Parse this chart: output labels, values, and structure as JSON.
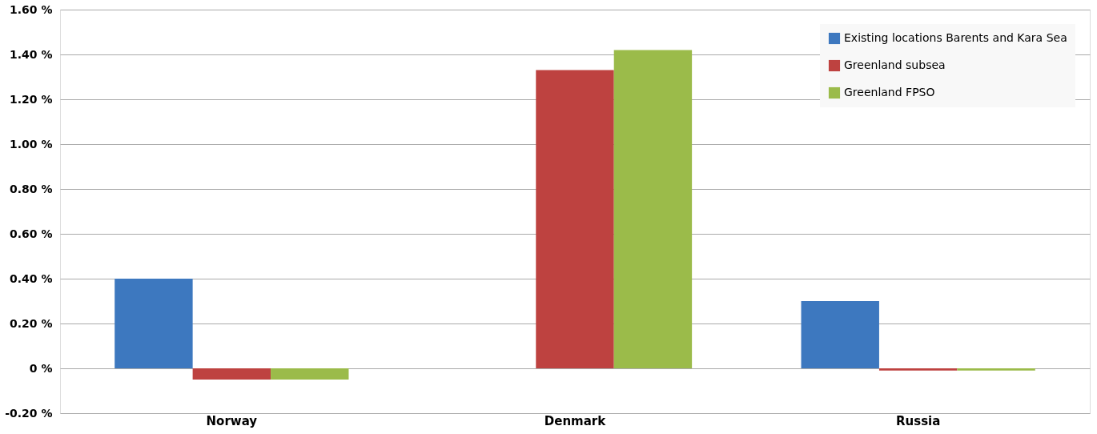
{
  "chart_data": {
    "type": "bar",
    "categories": [
      "Norway",
      "Denmark",
      "Russia"
    ],
    "series": [
      {
        "name": "Existing locations Barents and Kara Sea",
        "color": "#3d78bf",
        "values": [
          0.4,
          0,
          0.3
        ]
      },
      {
        "name": "Greenland subsea",
        "color": "#be4240",
        "values": [
          -0.05,
          1.33,
          -0.01
        ]
      },
      {
        "name": "Greenland FPSO",
        "color": "#9bbb4a",
        "values": [
          -0.05,
          1.42,
          -0.01
        ]
      }
    ],
    "ylim": [
      -0.2,
      1.6
    ],
    "yticks": [
      {
        "value": -0.2,
        "label": "-0.20 %"
      },
      {
        "value": 0,
        "label": "0 %"
      },
      {
        "value": 0.2,
        "label": "0.20 %"
      },
      {
        "value": 0.4,
        "label": "0.40 %"
      },
      {
        "value": 0.6,
        "label": "0.60 %"
      },
      {
        "value": 0.8,
        "label": "0.80 %"
      },
      {
        "value": 1.0,
        "label": "1.00 %"
      },
      {
        "value": 1.2,
        "label": "1.20 %"
      },
      {
        "value": 1.4,
        "label": "1.40 %"
      },
      {
        "value": 1.6,
        "label": "1.60 %"
      }
    ],
    "grid": "y",
    "legend": "top right"
  }
}
